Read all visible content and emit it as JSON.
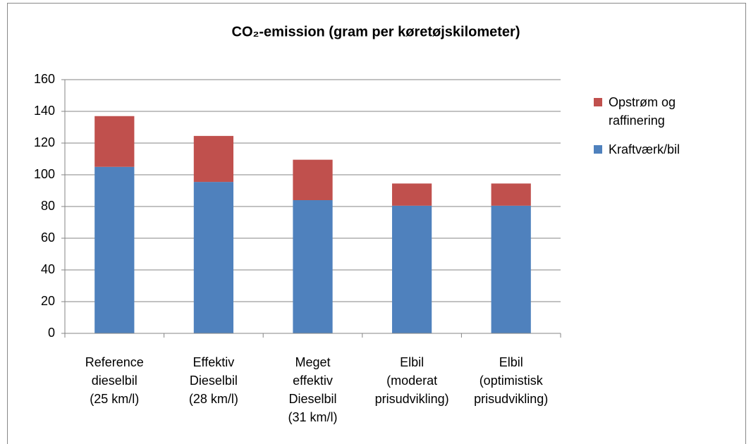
{
  "chart_data": {
    "type": "stacked-bar",
    "title": "CO₂-emission (gram per køretøjskilometer)",
    "categories": [
      [
        "Reference",
        "dieselbil",
        "(25 km/l)"
      ],
      [
        "Effektiv",
        "Dieselbil",
        "(28 km/l)"
      ],
      [
        "Meget",
        "effektiv",
        "Dieselbil",
        "(31 km/l)"
      ],
      [
        "Elbil",
        "(moderat",
        "prisudvikling)"
      ],
      [
        "Elbil",
        "(optimistisk",
        "prisudvikling)"
      ]
    ],
    "series": [
      {
        "name": "Kraftværk/bil",
        "color": "#4f81bd",
        "values": [
          105,
          95.5,
          84,
          80.5,
          80.5
        ]
      },
      {
        "name": "Opstrøm og raffinering",
        "color": "#c0504d",
        "values": [
          32,
          29,
          25.5,
          14,
          14
        ]
      }
    ],
    "ylim": [
      0,
      160
    ],
    "yticks": [
      0,
      20,
      40,
      60,
      80,
      100,
      120,
      140,
      160
    ],
    "grid": true
  }
}
